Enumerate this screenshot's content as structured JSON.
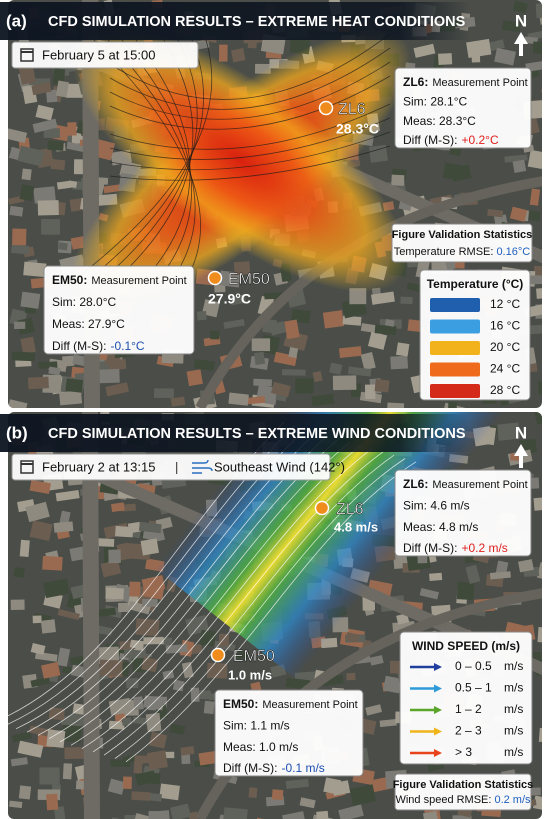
{
  "panels": [
    {
      "label": "(a)",
      "title": "CFD SIMULATION RESULTS – EXTREME HEAT CONDITIONS",
      "date": "February 5 at 15:00",
      "north": "N",
      "points": [
        {
          "name": "ZL6",
          "value": "28.3°C",
          "callout": {
            "name": "ZL6:",
            "kind": "Measurement Point",
            "sim": "Sim: 28.1°C",
            "meas": "Meas: 28.3°C",
            "diff_label": "Diff (M-S):",
            "diff": "+0.2°C",
            "diff_color": "#e02020"
          }
        },
        {
          "name": "EM50",
          "value": "27.9°C",
          "callout": {
            "name": "EM50:",
            "kind": "Measurement Point",
            "sim": "Sim: 28.0°C",
            "meas": "Meas: 27.9°C",
            "diff_label": "Diff (M-S):",
            "diff": "-0.1°C",
            "diff_color": "#1f4fb0"
          }
        }
      ],
      "stats": {
        "title": "Figure Validation Statistics",
        "label": "Temperature RMSE:",
        "value": "0.16°C"
      },
      "legend": {
        "title": "Temperature (°C)",
        "items": [
          {
            "label": "12 °C",
            "color": "#1f5fae"
          },
          {
            "label": "16 °C",
            "color": "#3a9ee0"
          },
          {
            "label": "20 °C",
            "color": "#f2b21c"
          },
          {
            "label": "24 °C",
            "color": "#ef6a1a"
          },
          {
            "label": "28 °C",
            "color": "#d42a1a"
          }
        ]
      }
    },
    {
      "label": "(b)",
      "title": "CFD SIMULATION RESULTS – EXTREME WIND CONDITIONS",
      "date": "February 2 at 13:15",
      "separator": "|",
      "wind": "Southeast Wind (142°)",
      "north": "N",
      "points": [
        {
          "name": "ZL6",
          "value": "4.8 m/s",
          "callout": {
            "name": "ZL6:",
            "kind": "Measurement Point",
            "sim": "Sim: 4.6 m/s",
            "meas": "Meas: 4.8 m/s",
            "diff_label": "Diff (M-S):",
            "diff": "+0.2 m/s",
            "diff_color": "#e02020"
          }
        },
        {
          "name": "EM50",
          "value": "1.0 m/s",
          "callout": {
            "name": "EM50:",
            "kind": "Measurement Point",
            "sim": "Sim: 1.1 m/s",
            "meas": "Meas: 1.0 m/s",
            "diff_label": "Diff (M-S):",
            "diff": "-0.1 m/s",
            "diff_color": "#1f4fb0"
          }
        }
      ],
      "stats": {
        "title": "Figure Validation Statistics",
        "label": "Wind speed RMSE:",
        "value": "0.2 m/s"
      },
      "legend": {
        "title": "WIND SPEED (m/s)",
        "items": [
          {
            "range": "0 – 0.5",
            "unit": "m/s",
            "color": "#1f3f9e"
          },
          {
            "range": "0.5 – 1",
            "unit": "m/s",
            "color": "#2f9ad8"
          },
          {
            "range": "1 – 2",
            "unit": "m/s",
            "color": "#5aa52a"
          },
          {
            "range": "2 – 3",
            "unit": "m/s",
            "color": "#f0b41a"
          },
          {
            "range": "> 3",
            "unit": "m/s",
            "color": "#e8431a"
          }
        ]
      }
    }
  ]
}
